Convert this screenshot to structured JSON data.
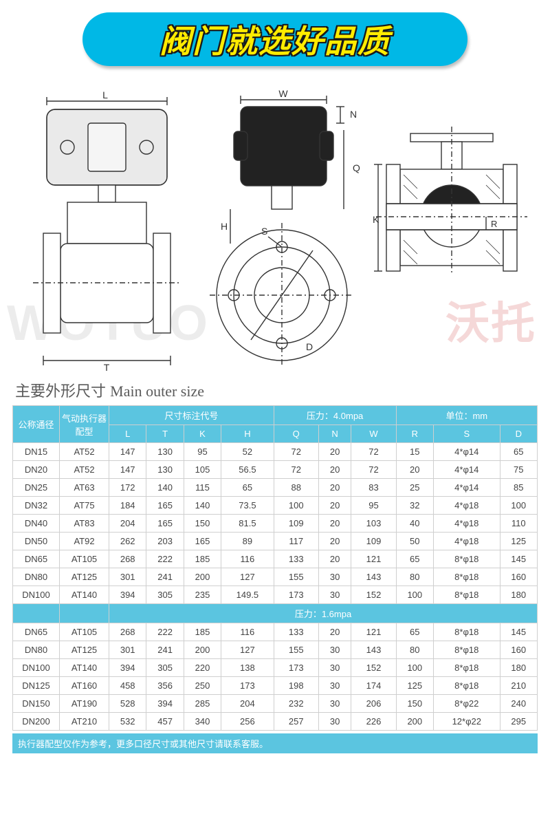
{
  "banner": {
    "text": "阀门就选好品质"
  },
  "watermark": {
    "left": "WOTUO",
    "right": "沃托",
    "reg": "®"
  },
  "sectionTitle": {
    "zh": "主要外形尺寸",
    "en": "Main outer size"
  },
  "dimLabels": [
    "L",
    "T",
    "K",
    "H",
    "Q",
    "N",
    "W",
    "R",
    "S",
    "D"
  ],
  "table": {
    "header": {
      "col1": "公称通径",
      "col2": "气动执行器配型",
      "group": "尺寸标注代号",
      "pressure1": "压力：4.0mpa",
      "unit": "单位：mm",
      "cols": [
        "L",
        "T",
        "K",
        "H",
        "Q",
        "N",
        "W",
        "R",
        "S",
        "D"
      ]
    },
    "section1": {
      "rows": [
        [
          "DN15",
          "AT52",
          "147",
          "130",
          "95",
          "52",
          "72",
          "20",
          "72",
          "15",
          "4*φ14",
          "65"
        ],
        [
          "DN20",
          "AT52",
          "147",
          "130",
          "105",
          "56.5",
          "72",
          "20",
          "72",
          "20",
          "4*φ14",
          "75"
        ],
        [
          "DN25",
          "AT63",
          "172",
          "140",
          "115",
          "65",
          "88",
          "20",
          "83",
          "25",
          "4*φ14",
          "85"
        ],
        [
          "DN32",
          "AT75",
          "184",
          "165",
          "140",
          "73.5",
          "100",
          "20",
          "95",
          "32",
          "4*φ18",
          "100"
        ],
        [
          "DN40",
          "AT83",
          "204",
          "165",
          "150",
          "81.5",
          "109",
          "20",
          "103",
          "40",
          "4*φ18",
          "110"
        ],
        [
          "DN50",
          "AT92",
          "262",
          "203",
          "165",
          "89",
          "117",
          "20",
          "109",
          "50",
          "4*φ18",
          "125"
        ],
        [
          "DN65",
          "AT105",
          "268",
          "222",
          "185",
          "116",
          "133",
          "20",
          "121",
          "65",
          "8*φ18",
          "145"
        ],
        [
          "DN80",
          "AT125",
          "301",
          "241",
          "200",
          "127",
          "155",
          "30",
          "143",
          "80",
          "8*φ18",
          "160"
        ],
        [
          "DN100",
          "AT140",
          "394",
          "305",
          "235",
          "149.5",
          "173",
          "30",
          "152",
          "100",
          "8*φ18",
          "180"
        ]
      ]
    },
    "section2": {
      "label": "压力：1.6mpa",
      "rows": [
        [
          "DN65",
          "AT105",
          "268",
          "222",
          "185",
          "116",
          "133",
          "20",
          "121",
          "65",
          "8*φ18",
          "145"
        ],
        [
          "DN80",
          "AT125",
          "301",
          "241",
          "200",
          "127",
          "155",
          "30",
          "143",
          "80",
          "8*φ18",
          "160"
        ],
        [
          "DN100",
          "AT140",
          "394",
          "305",
          "220",
          "138",
          "173",
          "30",
          "152",
          "100",
          "8*φ18",
          "180"
        ],
        [
          "DN125",
          "AT160",
          "458",
          "356",
          "250",
          "173",
          "198",
          "30",
          "174",
          "125",
          "8*φ18",
          "210"
        ],
        [
          "DN150",
          "AT190",
          "528",
          "394",
          "285",
          "204",
          "232",
          "30",
          "206",
          "150",
          "8*φ22",
          "240"
        ],
        [
          "DN200",
          "AT210",
          "532",
          "457",
          "340",
          "256",
          "257",
          "30",
          "226",
          "200",
          "12*φ22",
          "295"
        ]
      ]
    }
  },
  "footer": "执行器配型仅作为参考，更多口径尺寸或其他尺寸请联系客服。",
  "colors": {
    "banner_bg": "#00b8e6",
    "banner_text": "#ffec00",
    "header_bg": "#5bc5e0",
    "header_text": "#ffffff",
    "border": "#cfcfcf",
    "body_text": "#444444"
  }
}
